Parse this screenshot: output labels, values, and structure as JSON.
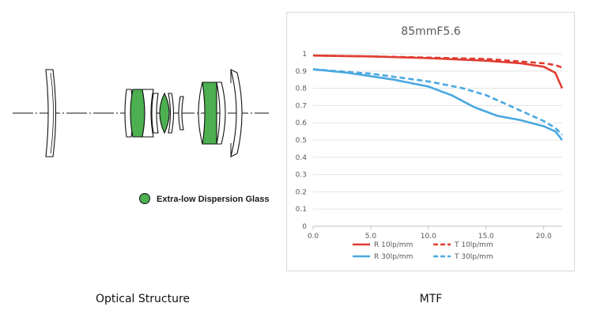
{
  "captions": {
    "left": "Optical Structure",
    "right": "MTF"
  },
  "diagram": {
    "legend_label": "Extra-low Dispersion Glass",
    "colors": {
      "ed_glass": "#4caf50",
      "outline": "#111111",
      "axis": "#111111"
    }
  },
  "chart_data": {
    "type": "line",
    "title": "85mmF5.6",
    "xlabel": "",
    "ylabel": "",
    "xlim": [
      0,
      21.6
    ],
    "ylim": [
      0,
      1
    ],
    "x_ticks": [
      "0.0",
      "5.0",
      "10.0",
      "15.0",
      "20.0"
    ],
    "x_tick_values": [
      0,
      5,
      10,
      15,
      20
    ],
    "y_ticks": [
      "0",
      "0.1",
      "0.2",
      "0.3",
      "0.4",
      "0.5",
      "0.6",
      "0.7",
      "0.8",
      "0.9",
      "1"
    ],
    "y_tick_values": [
      0,
      0.1,
      0.2,
      0.3,
      0.4,
      0.5,
      0.6,
      0.7,
      0.8,
      0.9,
      1.0
    ],
    "grid": "horizontal",
    "legend_position": "bottom",
    "series": [
      {
        "name": "R 10lp/mm",
        "color": "#e03c31",
        "dash": "solid",
        "x": [
          0,
          5,
          10,
          15,
          18,
          20,
          21,
          21.6
        ],
        "y": [
          0.99,
          0.985,
          0.975,
          0.96,
          0.945,
          0.925,
          0.89,
          0.8
        ]
      },
      {
        "name": "T 10lp/mm",
        "color": "#e03c31",
        "dash": "dashed",
        "x": [
          0,
          5,
          10,
          15,
          18,
          20,
          21,
          21.6
        ],
        "y": [
          0.99,
          0.985,
          0.978,
          0.97,
          0.955,
          0.945,
          0.935,
          0.92
        ]
      },
      {
        "name": "R 30lp/mm",
        "color": "#4aa8e0",
        "dash": "solid",
        "x": [
          0,
          3,
          7,
          10,
          12,
          14,
          16,
          18,
          20,
          21,
          21.6
        ],
        "y": [
          0.91,
          0.89,
          0.85,
          0.81,
          0.76,
          0.69,
          0.64,
          0.615,
          0.58,
          0.55,
          0.5
        ]
      },
      {
        "name": "T 30lp/mm",
        "color": "#4aa8e0",
        "dash": "dashed",
        "x": [
          0,
          5,
          10,
          13,
          15,
          18,
          20,
          21,
          21.6
        ],
        "y": [
          0.91,
          0.885,
          0.84,
          0.8,
          0.76,
          0.67,
          0.61,
          0.57,
          0.53
        ]
      }
    ]
  }
}
